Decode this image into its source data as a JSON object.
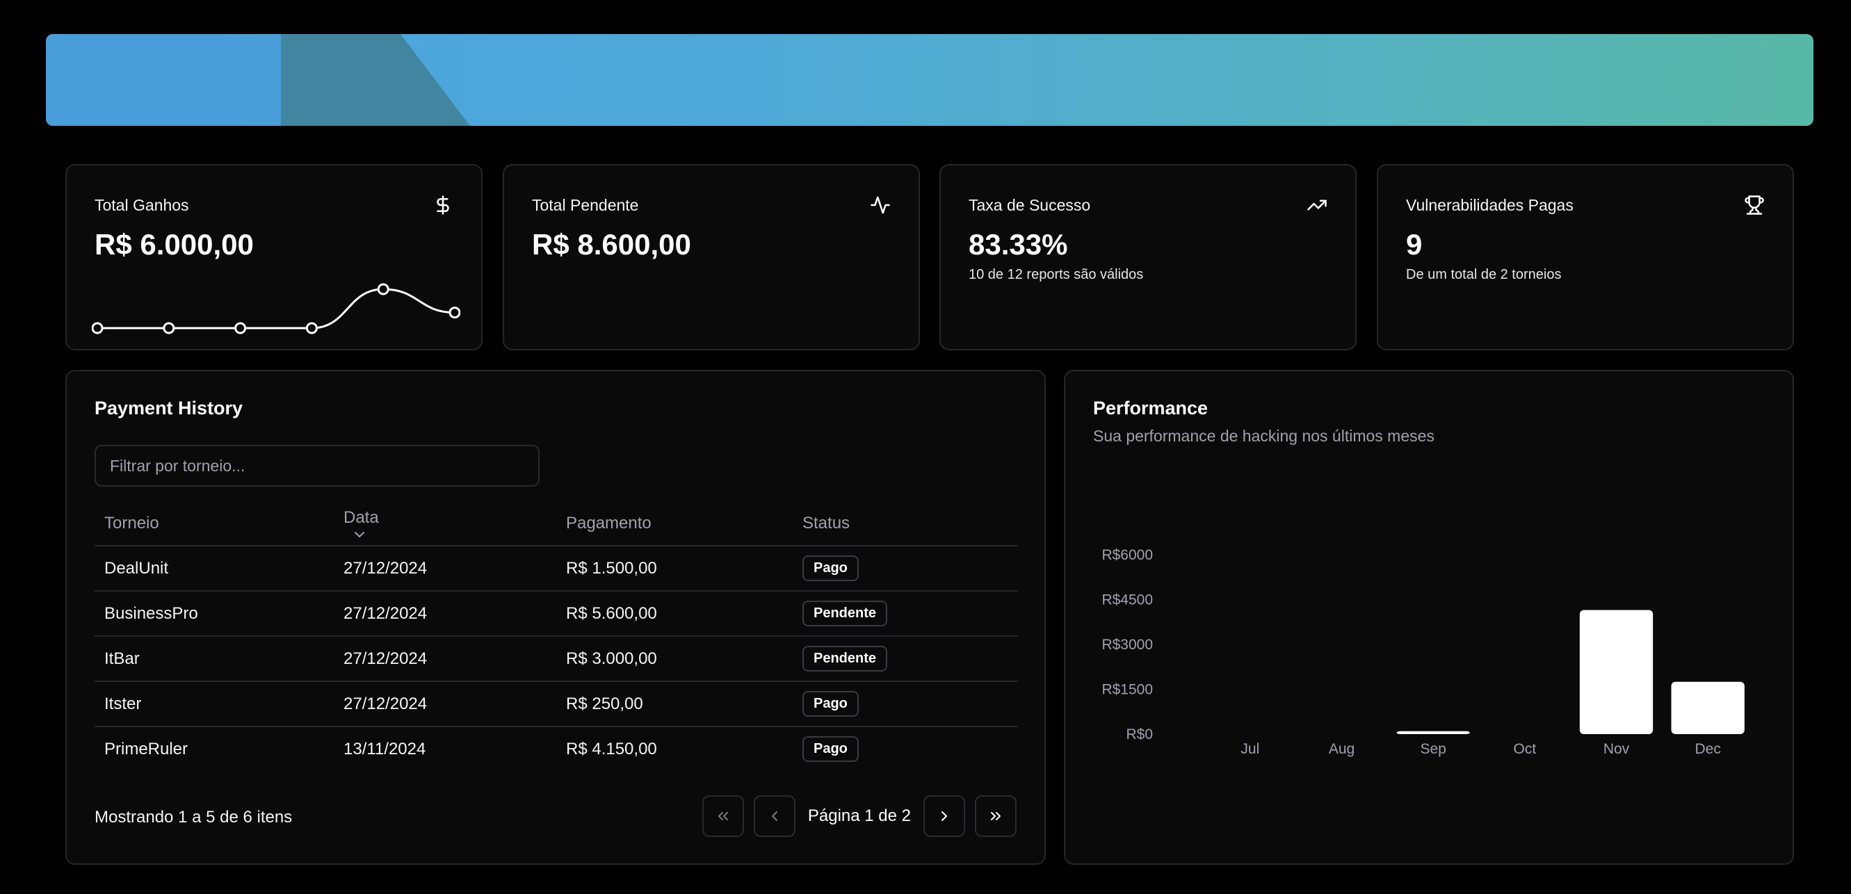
{
  "colors": {
    "background": "#000000",
    "card": "#0a0a0b",
    "border": "#26262b",
    "muted": "#a1a1aa",
    "banner_start": "#4aa3df",
    "banner_end": "#58b8a6"
  },
  "stats": [
    {
      "title": "Total Ganhos",
      "value": "R$ 6.000,00",
      "subtitle": "",
      "icon": "dollar-icon"
    },
    {
      "title": "Total Pendente",
      "value": "R$ 8.600,00",
      "subtitle": "",
      "icon": "activity-icon"
    },
    {
      "title": "Taxa de Sucesso",
      "value": "83.33%",
      "subtitle": "10 de 12 reports são válidos",
      "icon": "trending-up-icon"
    },
    {
      "title": "Vulnerabilidades Pagas",
      "value": "9",
      "subtitle": "De um total de 2 torneios",
      "icon": "trophy-icon"
    }
  ],
  "payment_history": {
    "title": "Payment History",
    "filter_placeholder": "Filtrar por torneio...",
    "columns": [
      "Torneio",
      "Data",
      "Pagamento",
      "Status"
    ],
    "rows": [
      {
        "torneio": "DealUnit",
        "data": "27/12/2024",
        "pagamento": "R$ 1.500,00",
        "status": "Pago"
      },
      {
        "torneio": "BusinessPro",
        "data": "27/12/2024",
        "pagamento": "R$ 5.600,00",
        "status": "Pendente"
      },
      {
        "torneio": "ItBar",
        "data": "27/12/2024",
        "pagamento": "R$ 3.000,00",
        "status": "Pendente"
      },
      {
        "torneio": "Itster",
        "data": "27/12/2024",
        "pagamento": "R$ 250,00",
        "status": "Pago"
      },
      {
        "torneio": "PrimeRuler",
        "data": "13/11/2024",
        "pagamento": "R$ 4.150,00",
        "status": "Pago"
      }
    ],
    "showing": "Mostrando 1 a 5 de 6 itens",
    "page_label": "Página 1 de 2"
  },
  "performance": {
    "title": "Performance",
    "subtitle": "Sua performance de hacking nos últimos meses"
  },
  "chart_data": [
    {
      "type": "line",
      "points": 6,
      "values": [
        0,
        0,
        0,
        0,
        1500,
        600
      ],
      "grid": false,
      "legend": "none"
    },
    {
      "type": "bar",
      "categories": [
        "Jul",
        "Aug",
        "Sep",
        "Oct",
        "Nov",
        "Dec"
      ],
      "values": [
        0,
        0,
        100,
        0,
        4150,
        1750
      ],
      "ylim": [
        0,
        6000
      ],
      "yticks": [
        0,
        1500,
        3000,
        4500,
        6000
      ],
      "ytick_labels": [
        "R$0",
        "R$1500",
        "R$3000",
        "R$4500",
        "R$6000"
      ],
      "grid": false,
      "legend": "none",
      "color": "#ffffff"
    }
  ]
}
